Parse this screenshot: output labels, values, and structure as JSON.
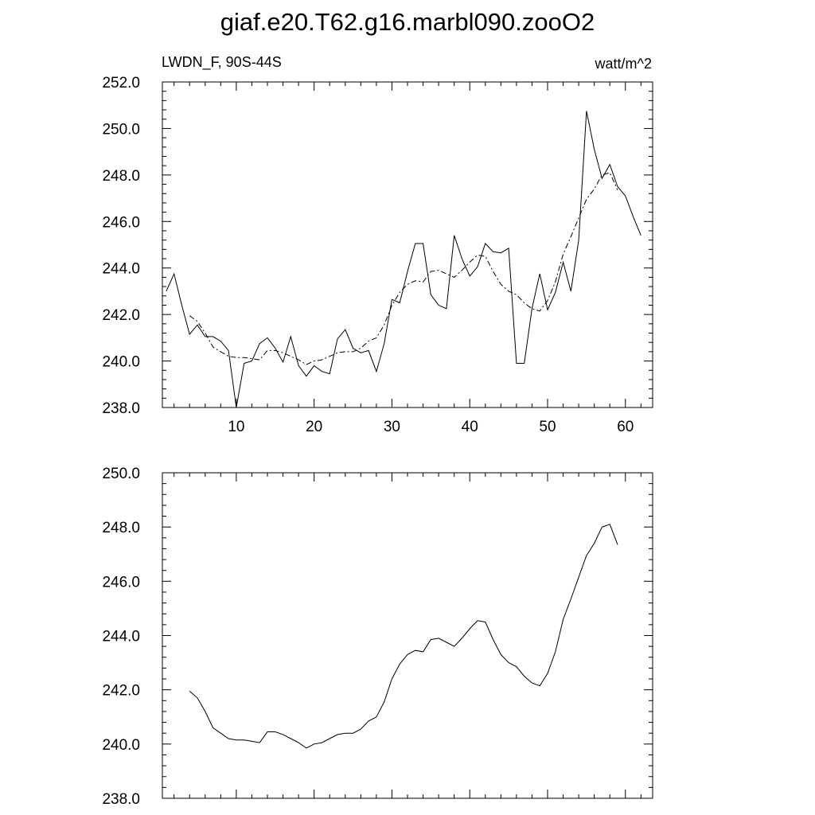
{
  "title": "giaf.e20.T62.g16.marbl090.zooO2",
  "left_label": "LWDN_F, 90S-44S",
  "right_label": "watt/m^2",
  "chart_data": [
    {
      "type": "line",
      "xlim": [
        0.5,
        63.5
      ],
      "ylim": [
        238.0,
        252.0
      ],
      "x_ticks": [
        "10",
        "20",
        "30",
        "40",
        "50",
        "60"
      ],
      "y_ticks": [
        "238.0",
        "240.0",
        "242.0",
        "244.0",
        "246.0",
        "248.0",
        "250.0",
        "252.0"
      ],
      "series": [
        {
          "style": "solid",
          "x_start": 1,
          "values": [
            243.0,
            243.75,
            242.4,
            241.15,
            241.55,
            241.05,
            241.05,
            240.85,
            240.45,
            238.0,
            239.9,
            240.0,
            240.75,
            241.0,
            240.55,
            239.95,
            241.05,
            239.8,
            239.35,
            239.8,
            239.55,
            239.45,
            240.95,
            241.35,
            240.55,
            240.35,
            240.45,
            239.55,
            240.75,
            242.65,
            242.5,
            243.85,
            245.05,
            245.05,
            242.85,
            242.4,
            242.25,
            245.4,
            244.4,
            243.65,
            244.05,
            245.05,
            244.7,
            244.65,
            244.85,
            239.9,
            239.9,
            242.25,
            243.75,
            242.2,
            242.95,
            244.25,
            243.0,
            245.2,
            250.75,
            249.1,
            247.85,
            248.45,
            247.5,
            247.1,
            246.2,
            245.4
          ]
        },
        {
          "style": "dash-dot",
          "x_start": 4,
          "values": [
            241.95,
            241.7,
            241.2,
            240.6,
            240.4,
            240.2,
            240.15,
            240.15,
            240.1,
            240.05,
            240.45,
            240.45,
            240.35,
            240.2,
            240.05,
            239.85,
            240.0,
            240.05,
            240.2,
            240.35,
            240.4,
            240.4,
            240.55,
            240.85,
            241.0,
            241.55,
            242.4,
            242.95,
            243.3,
            243.45,
            243.4,
            243.85,
            243.9,
            243.75,
            243.6,
            243.9,
            244.25,
            244.55,
            244.5,
            243.85,
            243.3,
            243.0,
            242.85,
            242.5,
            242.25,
            242.15,
            242.6,
            243.4,
            244.6,
            245.35,
            246.15,
            246.95,
            247.4,
            248.0,
            248.1,
            247.35
          ]
        }
      ]
    },
    {
      "type": "line",
      "xlim": [
        0.5,
        63.5
      ],
      "ylim": [
        238.0,
        250.0
      ],
      "y_ticks": [
        "238.0",
        "240.0",
        "242.0",
        "244.0",
        "246.0",
        "248.0",
        "250.0"
      ],
      "series": [
        {
          "style": "solid",
          "x_start": 4,
          "values": [
            241.95,
            241.7,
            241.2,
            240.6,
            240.4,
            240.2,
            240.15,
            240.15,
            240.1,
            240.05,
            240.45,
            240.45,
            240.35,
            240.2,
            240.05,
            239.85,
            240.0,
            240.05,
            240.2,
            240.35,
            240.4,
            240.4,
            240.55,
            240.85,
            241.0,
            241.55,
            242.4,
            242.95,
            243.3,
            243.45,
            243.4,
            243.85,
            243.9,
            243.75,
            243.6,
            243.9,
            244.25,
            244.55,
            244.5,
            243.85,
            243.3,
            243.0,
            242.85,
            242.5,
            242.25,
            242.15,
            242.6,
            243.4,
            244.6,
            245.35,
            246.15,
            246.95,
            247.4,
            248.0,
            248.1,
            247.35
          ]
        }
      ]
    }
  ]
}
